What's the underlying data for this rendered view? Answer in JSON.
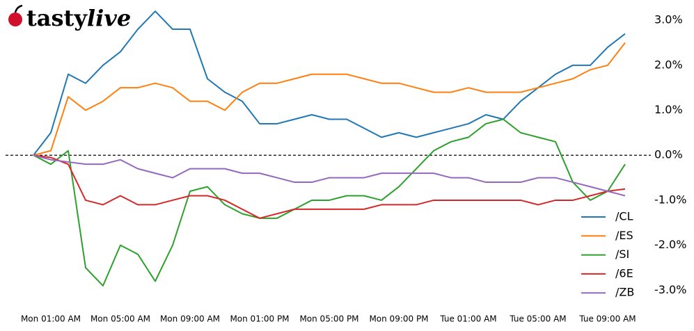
{
  "logo": [
    "tasty",
    "live"
  ],
  "chart_data": {
    "type": "line",
    "categories": [
      null,
      "Mon 01:00 AM",
      null,
      null,
      null,
      "Mon 05:00 AM",
      null,
      null,
      null,
      "Mon 09:00 AM",
      null,
      null,
      null,
      "Mon 01:00 PM",
      null,
      null,
      null,
      "Mon 05:00 PM",
      null,
      null,
      null,
      "Mon 09:00 PM",
      null,
      null,
      null,
      "Tue 01:00 AM",
      null,
      null,
      null,
      "Tue 05:00 AM",
      null,
      null,
      null,
      "Tue 09:00 AM",
      null
    ],
    "series": [
      {
        "name": "/CL",
        "color": "#1f77b4",
        "values": [
          0,
          0.5,
          1.8,
          1.6,
          2.0,
          2.3,
          2.8,
          3.2,
          2.8,
          2.8,
          1.7,
          1.4,
          1.2,
          0.7,
          0.7,
          0.8,
          0.9,
          0.8,
          0.8,
          0.6,
          0.4,
          0.5,
          0.4,
          0.5,
          0.6,
          0.7,
          0.9,
          0.8,
          1.2,
          1.5,
          1.8,
          2.0,
          2.0,
          2.4,
          2.7
        ]
      },
      {
        "name": "/ES",
        "color": "#ff7f0e",
        "values": [
          0,
          0.1,
          1.3,
          1.0,
          1.2,
          1.5,
          1.5,
          1.6,
          1.5,
          1.2,
          1.2,
          1.0,
          1.4,
          1.6,
          1.6,
          1.7,
          1.8,
          1.8,
          1.8,
          1.7,
          1.6,
          1.6,
          1.5,
          1.4,
          1.4,
          1.5,
          1.4,
          1.4,
          1.4,
          1.5,
          1.6,
          1.7,
          1.9,
          2.0,
          2.5
        ]
      },
      {
        "name": "/SI",
        "color": "#2ca02c",
        "values": [
          0,
          -0.2,
          0.1,
          -2.5,
          -2.9,
          -2.0,
          -2.2,
          -2.8,
          -2.0,
          -0.8,
          -0.7,
          -1.1,
          -1.3,
          -1.4,
          -1.4,
          -1.2,
          -1.0,
          -1.0,
          -0.9,
          -0.9,
          -1.0,
          -0.7,
          -0.3,
          0.1,
          0.3,
          0.4,
          0.7,
          0.8,
          0.5,
          0.4,
          0.3,
          -0.6,
          -1.0,
          -0.8,
          -0.2
        ]
      },
      {
        "name": "/6E",
        "color": "#d62728",
        "values": [
          0,
          -0.05,
          -0.2,
          -1.0,
          -1.1,
          -0.9,
          -1.1,
          -1.1,
          -1.0,
          -0.9,
          -0.9,
          -1.0,
          -1.2,
          -1.4,
          -1.3,
          -1.2,
          -1.2,
          -1.2,
          -1.2,
          -1.2,
          -1.1,
          -1.1,
          -1.1,
          -1.0,
          -1.0,
          -1.0,
          -1.0,
          -1.0,
          -1.0,
          -1.1,
          -1.0,
          -1.0,
          -0.9,
          -0.8,
          -0.75
        ]
      },
      {
        "name": "/ZB",
        "color": "#9467bd",
        "values": [
          0,
          -0.1,
          -0.15,
          -0.2,
          -0.2,
          -0.1,
          -0.3,
          -0.4,
          -0.5,
          -0.3,
          -0.3,
          -0.3,
          -0.4,
          -0.4,
          -0.5,
          -0.6,
          -0.6,
          -0.5,
          -0.5,
          -0.5,
          -0.4,
          -0.4,
          -0.4,
          -0.4,
          -0.5,
          -0.5,
          -0.6,
          -0.6,
          -0.6,
          -0.5,
          -0.5,
          -0.6,
          -0.7,
          -0.8,
          -0.9
        ]
      }
    ],
    "ylim": [
      -3.35,
      3.45
    ],
    "yticks": [
      {
        "value": 3,
        "label": "3.0%"
      },
      {
        "value": 2,
        "label": "2.0%"
      },
      {
        "value": 1,
        "label": "1.0%"
      },
      {
        "value": 0,
        "label": "0.0%"
      },
      {
        "value": -1,
        "label": "-1.0%"
      },
      {
        "value": -2,
        "label": "-2.0%"
      },
      {
        "value": -3,
        "label": "-3.0%"
      }
    ],
    "zero_line": true,
    "legend": "lower right"
  }
}
